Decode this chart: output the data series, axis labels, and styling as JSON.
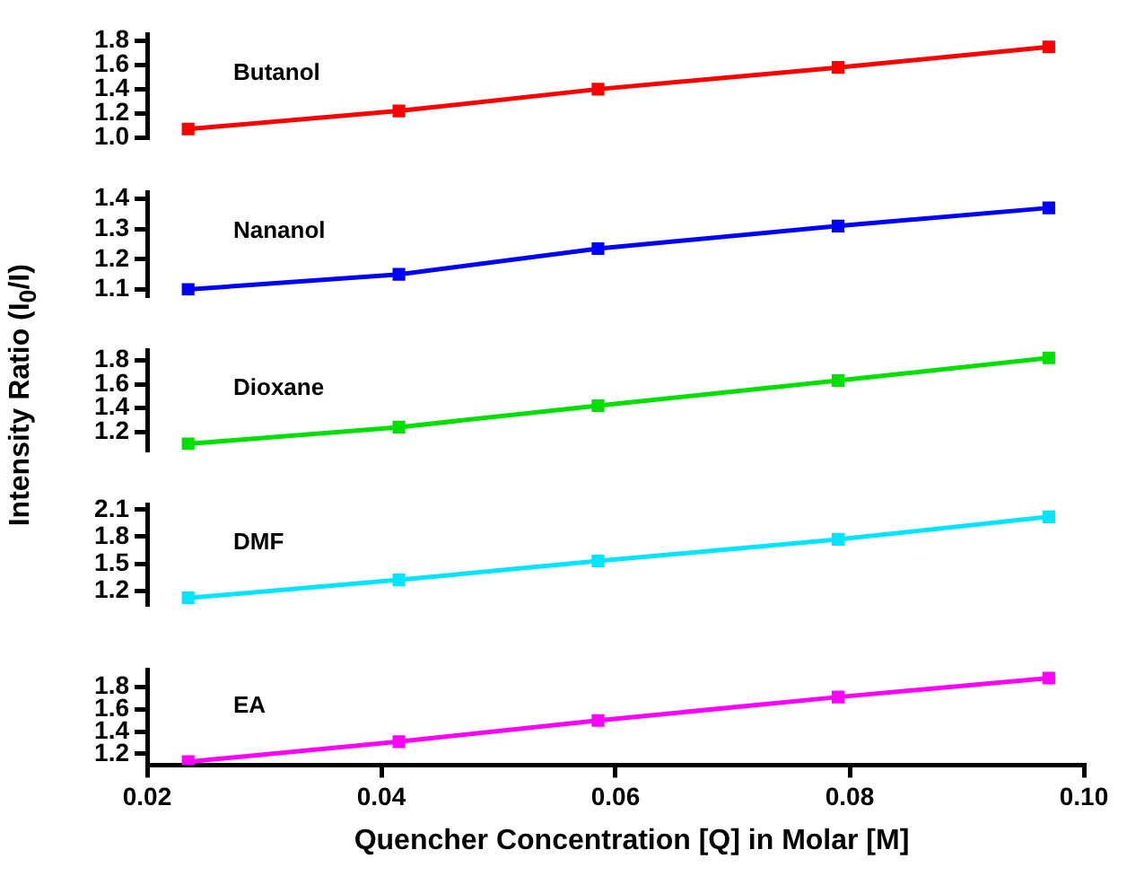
{
  "chart_data": [
    {
      "type": "line",
      "x": [
        0.0235,
        0.0415,
        0.0585,
        0.079,
        0.097
      ],
      "xlim": [
        0.02,
        0.1
      ],
      "ylim": [
        1.0,
        1.85
      ],
      "yticks": [
        {
          "value": 1,
          "label": "1.0"
        },
        1.2,
        1.4,
        1.6,
        1.8
      ],
      "tick_labels": "y",
      "marker": "square",
      "grid": false,
      "legend": false,
      "series": [
        {
          "name": "Butanol",
          "color": "#ff0000",
          "values": [
            1.07,
            1.22,
            1.4,
            1.58,
            1.75
          ]
        }
      ]
    },
    {
      "type": "line",
      "x": [
        0.0235,
        0.0415,
        0.0585,
        0.079,
        0.097
      ],
      "xlim": [
        0.02,
        0.1
      ],
      "ylim": [
        1.08,
        1.42
      ],
      "yticks": [
        1.1,
        1.2,
        1.3,
        1.4
      ],
      "tick_labels": "y",
      "marker": "square",
      "grid": false,
      "legend": false,
      "series": [
        {
          "name": "Nananol",
          "color": "#0000ff",
          "values": [
            1.1,
            1.15,
            1.235,
            1.31,
            1.37
          ]
        }
      ]
    },
    {
      "type": "line",
      "x": [
        0.0235,
        0.0415,
        0.0585,
        0.079,
        0.097
      ],
      "xlim": [
        0.02,
        0.1
      ],
      "ylim": [
        1.05,
        1.88
      ],
      "yticks": [
        1.2,
        1.4,
        1.6,
        1.8
      ],
      "tick_labels": "y",
      "marker": "square",
      "grid": false,
      "legend": false,
      "ylabel": "Intensity Ratio (I$_{0}$/I)",
      "series": [
        {
          "name": "Dioxane",
          "color": "#00e000",
          "values": [
            1.1,
            1.24,
            1.42,
            1.63,
            1.82
          ]
        }
      ]
    },
    {
      "type": "line",
      "x": [
        0.0235,
        0.0415,
        0.0585,
        0.079,
        0.097
      ],
      "xlim": [
        0.02,
        0.1
      ],
      "ylim": [
        1.05,
        2.15
      ],
      "yticks": [
        1.2,
        1.5,
        1.8,
        2.1
      ],
      "tick_labels": "y",
      "marker": "square",
      "grid": false,
      "legend": false,
      "series": [
        {
          "name": "DMF",
          "color": "#00e5ff",
          "values": [
            1.12,
            1.32,
            1.53,
            1.77,
            2.02
          ]
        }
      ]
    },
    {
      "type": "line",
      "x": [
        0.0235,
        0.0415,
        0.0585,
        0.079,
        0.097
      ],
      "xlim": [
        0.02,
        0.1
      ],
      "xticks": [
        0.02,
        0.04,
        0.06,
        0.08,
        {
          "value": 0.1,
          "label": "0.10"
        }
      ],
      "ylim": [
        1.1,
        1.95
      ],
      "yticks": [
        1.2,
        1.4,
        1.6,
        1.8
      ],
      "marker": "square",
      "grid": false,
      "legend": false,
      "xlabel": "Quencher Concentration [Q] in Molar [M]",
      "series": [
        {
          "name": "EA",
          "color": "#ff00ff",
          "values": [
            1.13,
            1.31,
            1.5,
            1.71,
            1.88
          ]
        }
      ]
    }
  ]
}
